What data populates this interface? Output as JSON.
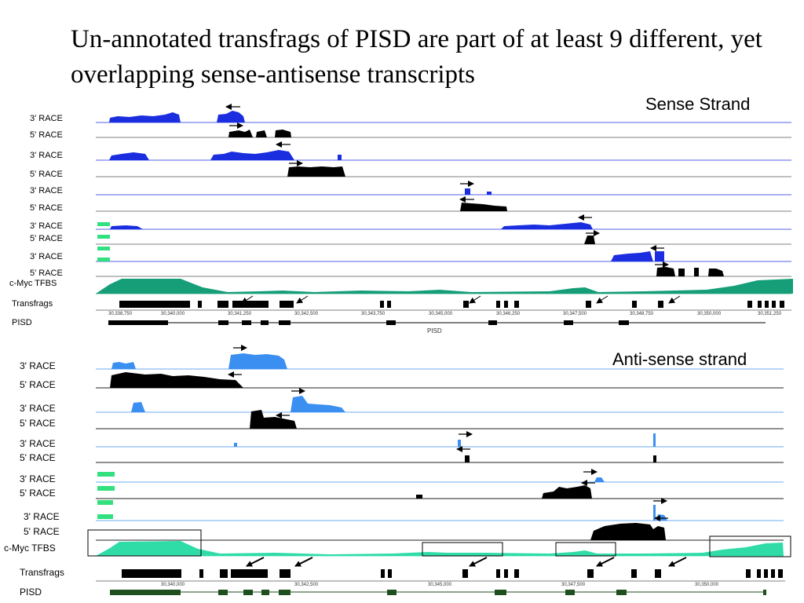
{
  "title": "Un-annotated transfrags of PISD are part of at least 9 different, yet  overlapping sense-antisense transcripts",
  "sense_panel": {
    "label": "Sense Strand",
    "tracks": [
      "3' RACE",
      "5' RACE",
      "3' RACE",
      "5' RACE",
      "3' RACE",
      "5' RACE",
      "3' RACE",
      "5' RACE",
      "3' RACE",
      "5' RACE",
      "c-Myc TFBS",
      "Transfrags",
      "PISD"
    ],
    "coordinates": [
      "30,338,750",
      "30,340,000",
      "30,341,250",
      "30,342,500",
      "30,343,750",
      "30,345,000",
      "30,346,250",
      "30,347,500",
      "30,348,750",
      "30,350,000",
      "30,351,250"
    ],
    "gene_name": "PISD"
  },
  "antisense_panel": {
    "label": "Anti-sense strand",
    "tracks": [
      "3' RACE",
      "5' RACE",
      "3' RACE",
      "5' RACE",
      "3' RACE",
      "5' RACE",
      "3' RACE",
      "5' RACE",
      "3' RACE",
      "5' RACE",
      "c-Myc TFBS",
      "Transfrags",
      "PISD"
    ],
    "coordinates": [
      "30,340,000",
      "30,342,500",
      "30,345,000",
      "30,347,500",
      "30,350,000"
    ]
  },
  "colors": {
    "sense_3race": "#1a2ee0",
    "antisense_3race": "#3b8ff0",
    "race_5": "#000000",
    "sense_tfbs": "#159e78",
    "antisense_tfbs": "#2fdca8",
    "marker": "#33e080"
  }
}
